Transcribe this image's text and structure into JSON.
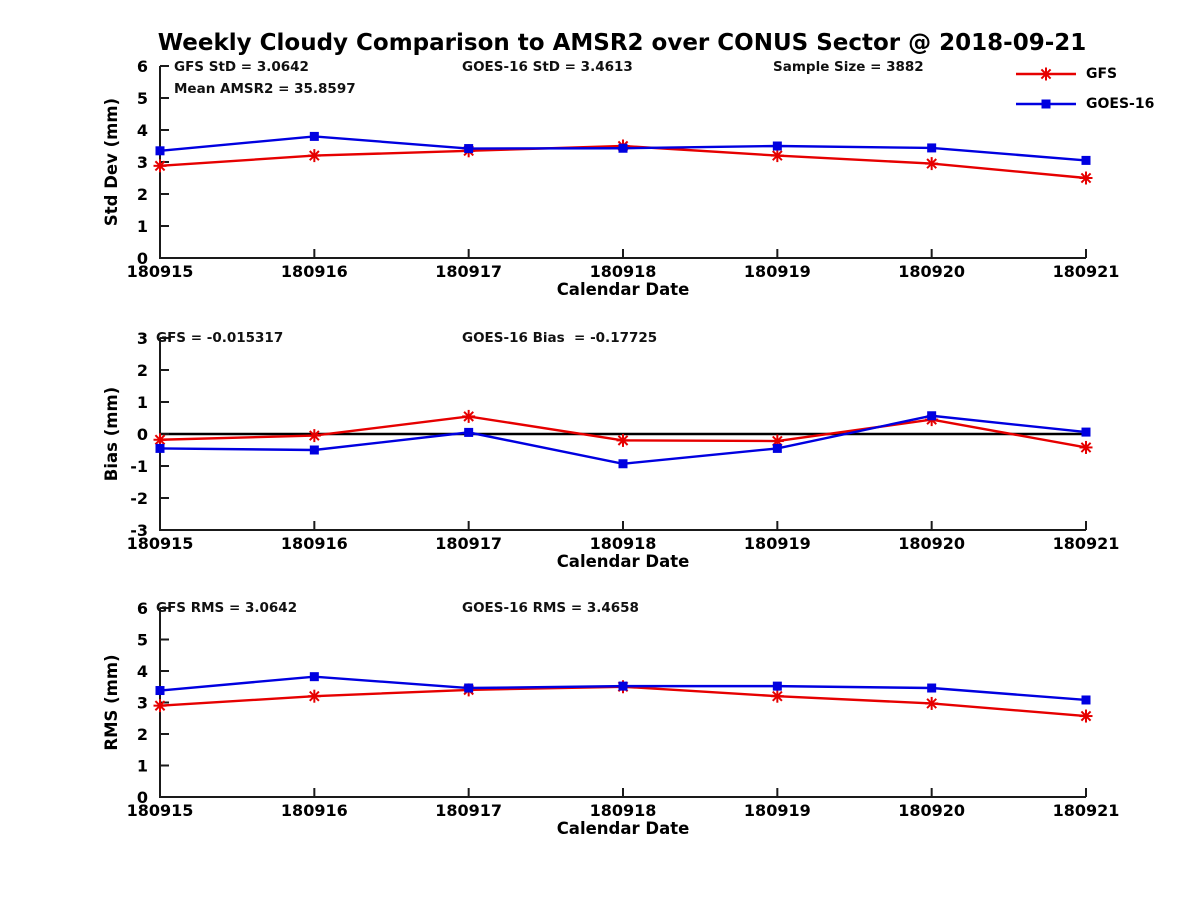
{
  "title": "Weekly Cloudy Comparison to AMSR2 over CONUS Sector @ 2018-09-21",
  "colors": {
    "gfs": "#e60000",
    "goes16": "#0000e0",
    "axis": "#1a1a1a",
    "zero_line": "#000000"
  },
  "legend": {
    "items": [
      {
        "label": "GFS",
        "color": "#e60000",
        "marker": "asterisk"
      },
      {
        "label": "GOES-16",
        "color": "#0000e0",
        "marker": "square"
      }
    ]
  },
  "chart_data": {
    "type": "line",
    "categories": [
      "180915",
      "180916",
      "180917",
      "180918",
      "180919",
      "180920",
      "180921"
    ],
    "xlabel": "Calendar Date",
    "legend_position": "top-right",
    "grid": false,
    "panels": [
      {
        "ylabel": "Std Dev (mm)",
        "ylim": [
          0,
          6
        ],
        "yticks": [
          0,
          1,
          2,
          3,
          4,
          5,
          6
        ],
        "zero_line": false,
        "annotations": {
          "gfs_std": "GFS StD = 3.0642",
          "mean_amsr2": "Mean AMSR2 = 35.8597",
          "goes_std": "GOES-16 StD = 3.4613",
          "sample_size": "Sample Size = 3882"
        },
        "series": [
          {
            "name": "GFS",
            "color": "#e60000",
            "marker": "asterisk",
            "values": [
              2.88,
              3.2,
              3.35,
              3.5,
              3.2,
              2.95,
              2.5
            ]
          },
          {
            "name": "GOES-16",
            "color": "#0000e0",
            "marker": "square",
            "values": [
              3.35,
              3.8,
              3.42,
              3.43,
              3.5,
              3.44,
              3.05
            ]
          }
        ]
      },
      {
        "ylabel": "Bias (mm)",
        "ylim": [
          -3,
          3
        ],
        "yticks": [
          -3,
          -2,
          -1,
          0,
          1,
          2,
          3
        ],
        "zero_line": true,
        "annotations": {
          "gfs_bias": "GFS = -0.015317",
          "goes_bias": "GOES-16 Bias  = -0.17725"
        },
        "series": [
          {
            "name": "GFS",
            "color": "#e60000",
            "marker": "asterisk",
            "values": [
              -0.18,
              -0.05,
              0.55,
              -0.2,
              -0.22,
              0.45,
              -0.42
            ]
          },
          {
            "name": "GOES-16",
            "color": "#0000e0",
            "marker": "square",
            "values": [
              -0.45,
              -0.5,
              0.05,
              -0.93,
              -0.45,
              0.57,
              0.06
            ]
          }
        ]
      },
      {
        "ylabel": "RMS (mm)",
        "ylim": [
          0,
          6
        ],
        "yticks": [
          0,
          1,
          2,
          3,
          4,
          5,
          6
        ],
        "zero_line": false,
        "annotations": {
          "gfs_rms": "GFS RMS = 3.0642",
          "goes_rms": "GOES-16 RMS = 3.4658"
        },
        "series": [
          {
            "name": "GFS",
            "color": "#e60000",
            "marker": "asterisk",
            "values": [
              2.9,
              3.2,
              3.4,
              3.5,
              3.2,
              2.97,
              2.57
            ]
          },
          {
            "name": "GOES-16",
            "color": "#0000e0",
            "marker": "square",
            "values": [
              3.38,
              3.82,
              3.46,
              3.52,
              3.52,
              3.46,
              3.08
            ]
          }
        ]
      }
    ]
  }
}
